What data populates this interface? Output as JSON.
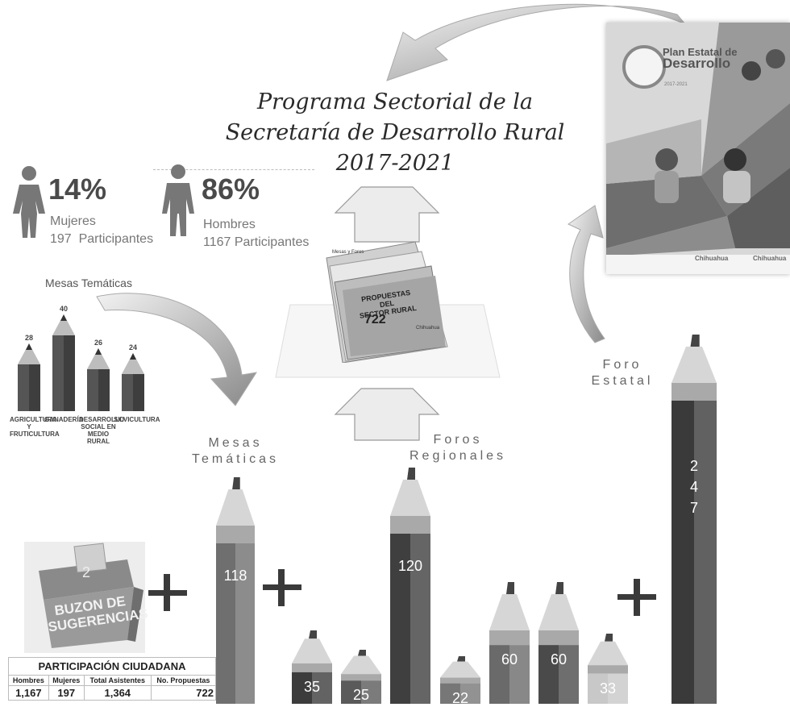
{
  "title": {
    "line1": "Programa Sectorial de la",
    "line2": "Secretaría de Desarrollo Rural",
    "line3": "2017-2021"
  },
  "women": {
    "percent": "14%",
    "label": "Mujeres",
    "participants": "197  Participantes"
  },
  "men": {
    "percent": "86%",
    "label": "Hombres",
    "participants": "1167 Participantes"
  },
  "cover": {
    "title_line1": "Plan Estatal de",
    "title_line2": "Desarrollo",
    "years": "2017-2021",
    "footer_left": "Chihuahua",
    "footer_right": "Chihuahua"
  },
  "mesas_chart": {
    "title": "Mesas Temáticas",
    "items": [
      {
        "label": "AGRICULTURA Y FRUTICULTURA",
        "value": 28
      },
      {
        "label": "GANADERÍA",
        "value": 40
      },
      {
        "label": "DESARROLLO SOCIAL EN MEDIO RURAL",
        "value": 26
      },
      {
        "label": "SILVICULTURA",
        "value": 24
      }
    ]
  },
  "folder": {
    "tab_label": "Mesas y Foros",
    "line1": "PROPUESTAS DEL",
    "line2": "SECTOR RURAL",
    "count": "722",
    "brand": "Chihuahua"
  },
  "labels": {
    "mesas": "Mesas\nTemáticas",
    "foros_regionales": "Foros\nRegionales",
    "foro_estatal": "Foro\nEstatal"
  },
  "buzon": {
    "count": "2",
    "line1": "BUZON DE",
    "line2": "SUGERENCIAS"
  },
  "markers": [
    {
      "id": "mesas",
      "value": 118,
      "text": "118",
      "color": "#6f6f6f"
    },
    {
      "id": "r1",
      "value": 35,
      "text": "35",
      "color": "#3c3c3c"
    },
    {
      "id": "r2",
      "value": 25,
      "text": "25",
      "color": "#5a5a5a"
    },
    {
      "id": "r3",
      "value": 120,
      "text": "120",
      "color": "#3f3f3f"
    },
    {
      "id": "r4",
      "value": 22,
      "text": "22",
      "color": "#777777"
    },
    {
      "id": "r5",
      "value": 60,
      "text": "60",
      "color": "#6a6a6a"
    },
    {
      "id": "r6",
      "value": 60,
      "text": "60",
      "color": "#4a4a4a"
    },
    {
      "id": "r7",
      "value": 33,
      "text": "33",
      "color": "#c8c8c8"
    },
    {
      "id": "estatal",
      "value": 247,
      "text": "2\n4\n7",
      "color": "#3a3a3a"
    }
  ],
  "table": {
    "title": "PARTICIPACIÓN CIUDADANA",
    "headers": [
      "Hombres",
      "Mujeres",
      "Total Asistentes",
      "No. Propuestas"
    ],
    "values": [
      "1,167",
      "197",
      "1,364",
      "722"
    ]
  }
}
